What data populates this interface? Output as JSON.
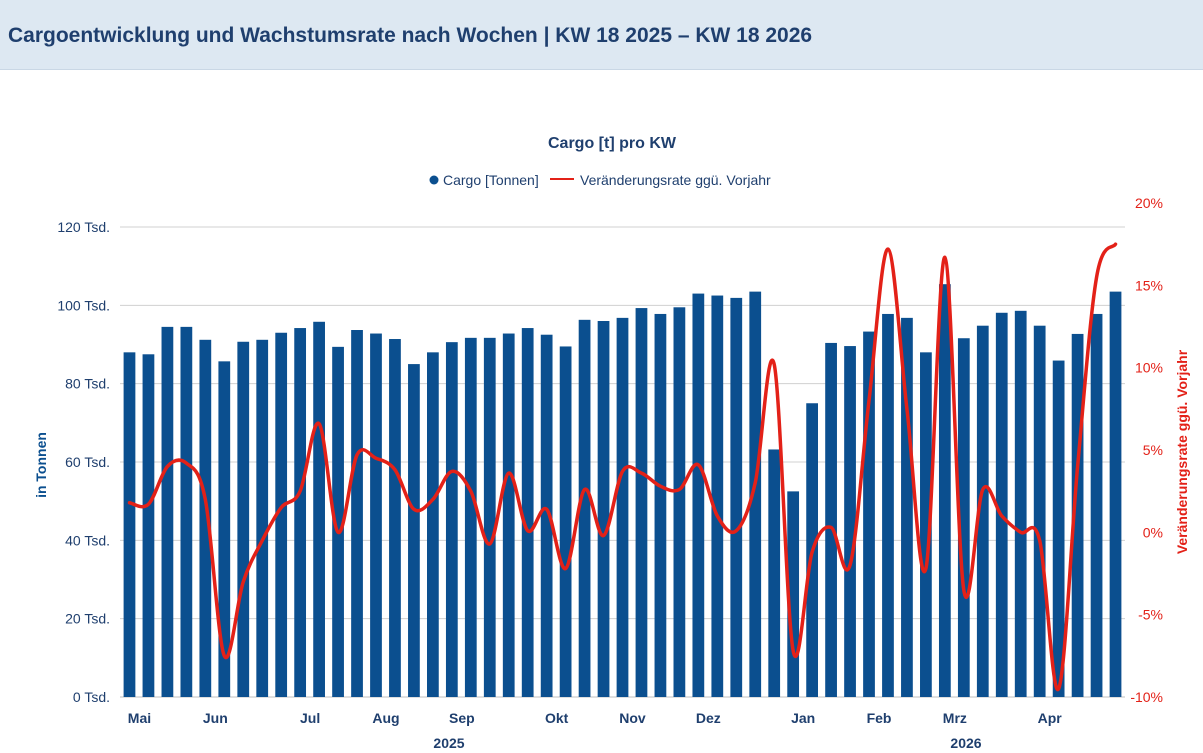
{
  "header": {
    "title": "Cargoentwicklung und Wachstumsrate nach Wochen | KW 18 2025 – KW 18 2026"
  },
  "colors": {
    "header_bg": "#dde8f2",
    "bar": "#0b4f8f",
    "line": "#e32118",
    "text": "#1f3f6e",
    "grid": "#d0d0d0"
  },
  "chart_data": {
    "type": "bar",
    "title": "Cargo [t] pro KW",
    "legend_position": "top",
    "grid": true,
    "x_month_labels": [
      "Mai",
      "Jun",
      "Jul",
      "Aug",
      "Sep",
      "Okt",
      "Nov",
      "Dez",
      "Jan",
      "Feb",
      "Mrz",
      "Apr"
    ],
    "x_year_labels": [
      "2025",
      "2026"
    ],
    "y_left": {
      "label": "in Tonnen",
      "ticks": [
        "0 Tsd.",
        "20 Tsd.",
        "40 Tsd.",
        "60 Tsd.",
        "80 Tsd.",
        "100 Tsd.",
        "120 Tsd."
      ],
      "range": [
        0,
        120000
      ]
    },
    "y_right": {
      "label": "Veränderungsrate ggü. Vorjahr",
      "ticks": [
        "-10%",
        "-5%",
        "0%",
        "5%",
        "10%",
        "15%",
        "20%"
      ],
      "range": [
        -10,
        20
      ]
    },
    "series": [
      {
        "name": "Cargo [Tonnen]",
        "type": "bar",
        "axis": "left",
        "values": [
          88000,
          87500,
          94500,
          94500,
          91200,
          85700,
          90700,
          91200,
          93000,
          94200,
          95800,
          89400,
          93700,
          92800,
          91400,
          85000,
          88000,
          90600,
          91700,
          91700,
          92800,
          94200,
          92500,
          89500,
          96300,
          96000,
          96800,
          99300,
          97800,
          99500,
          103000,
          102500,
          101900,
          103500,
          63200,
          52500,
          75000,
          90400,
          89600,
          93300,
          97800,
          96800,
          88000,
          105400,
          91600,
          94800,
          98100,
          98600,
          94800,
          85900,
          92700,
          97800,
          103500
        ]
      },
      {
        "name": "Veränderungsrate ggü. Vorjahr",
        "type": "line",
        "axis": "right",
        "values": [
          1.8,
          1.7,
          4.0,
          4.2,
          2.0,
          -7.5,
          -3.0,
          -0.5,
          1.5,
          2.5,
          6.6,
          0.0,
          4.7,
          4.5,
          3.8,
          1.4,
          2.0,
          3.7,
          2.5,
          -0.7,
          3.6,
          0.1,
          1.4,
          -2.2,
          2.6,
          -0.2,
          3.7,
          3.6,
          2.8,
          2.6,
          4.1,
          1.0,
          0.1,
          3.0,
          10.2,
          -7.2,
          -1.2,
          0.3,
          -2.0,
          8.0,
          17.2,
          7.5,
          -2.2,
          16.7,
          -3.5,
          2.6,
          1.0,
          0.0,
          -0.5,
          -9.5,
          4.0,
          15.5,
          17.5
        ]
      }
    ]
  }
}
